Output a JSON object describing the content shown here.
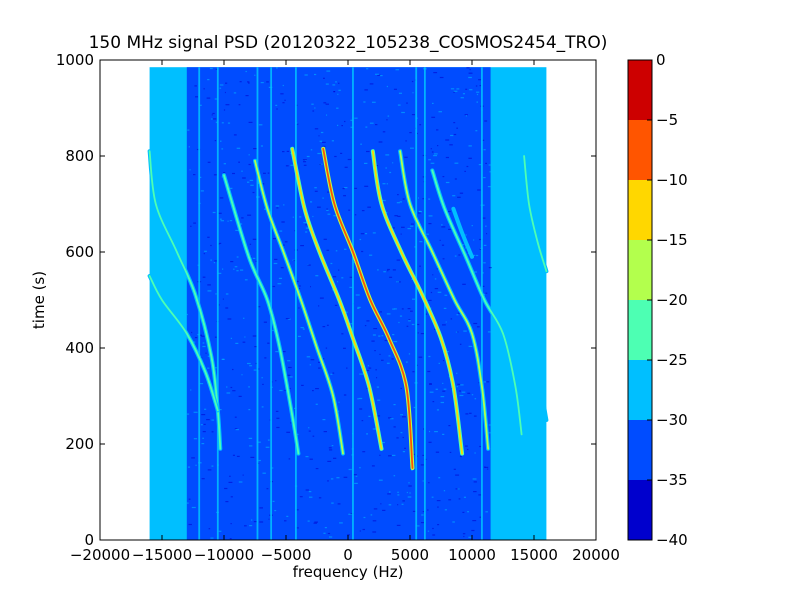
{
  "chart_data": {
    "type": "heatmap",
    "title": "150 MHz signal PSD (20120322_105238_COSMOS2454_TRO)",
    "xlabel": "frequency (Hz)",
    "ylabel": "time (s)",
    "xlim": [
      -20000,
      20000
    ],
    "ylim": [
      0,
      1000
    ],
    "x_ticks": [
      -20000,
      -15000,
      -10000,
      -5000,
      0,
      5000,
      10000,
      15000,
      20000
    ],
    "x_tick_labels": [
      "−20000",
      "−15000",
      "−10000",
      "−5000",
      "0",
      "5000",
      "10000",
      "15000",
      "20000"
    ],
    "y_ticks": [
      0,
      200,
      400,
      600,
      800,
      1000
    ],
    "y_tick_labels": [
      "0",
      "200",
      "400",
      "600",
      "800",
      "1000"
    ],
    "data_extent": {
      "x": [
        -16000,
        16000
      ],
      "y": [
        0,
        985
      ]
    },
    "colorbar": {
      "range": [
        -40,
        0
      ],
      "levels": [
        -40,
        -35,
        -30,
        -25,
        -20,
        -15,
        -10,
        -5,
        0
      ],
      "tick_labels": [
        "−40",
        "−35",
        "−30",
        "−25",
        "−20",
        "−15",
        "−10",
        "−5",
        "0"
      ],
      "colors": [
        "#0000cd",
        "#004cff",
        "#00bfff",
        "#4dffb3",
        "#b3ff4d",
        "#ffd700",
        "#ff5500",
        "#cd0000"
      ]
    },
    "background_level": -27,
    "noise_band": {
      "x": [
        -13000,
        11500
      ],
      "level": -32
    },
    "vertical_lines": [
      {
        "x": -12000,
        "level": -27
      },
      {
        "x": -10500,
        "level": -27
      },
      {
        "x": -7300,
        "level": -25
      },
      {
        "x": -6200,
        "level": -25
      },
      {
        "x": -4200,
        "level": -27
      },
      {
        "x": 400,
        "level": -27
      },
      {
        "x": 5500,
        "level": -27
      },
      {
        "x": 6200,
        "level": -25
      },
      {
        "x": 10800,
        "level": -27
      }
    ],
    "tracks": [
      {
        "points": [
          [
            -16000,
            810
          ],
          [
            -15500,
            700
          ],
          [
            -13800,
            600
          ],
          [
            -12300,
            510
          ],
          [
            -11000,
            380
          ],
          [
            -10500,
            270
          ],
          [
            -10300,
            190
          ]
        ],
        "level": -20
      },
      {
        "points": [
          [
            -16000,
            550
          ],
          [
            -15000,
            500
          ],
          [
            -13000,
            430
          ],
          [
            -11500,
            350
          ],
          [
            -10500,
            270
          ]
        ],
        "level": -20
      },
      {
        "points": [
          [
            -10000,
            760
          ],
          [
            -8000,
            590
          ],
          [
            -6500,
            500
          ],
          [
            -5500,
            400
          ],
          [
            -4500,
            260
          ],
          [
            -4000,
            180
          ]
        ],
        "level": -20
      },
      {
        "points": [
          [
            -7500,
            790
          ],
          [
            -6500,
            690
          ],
          [
            -5200,
            600
          ],
          [
            -3800,
            500
          ],
          [
            -2500,
            400
          ],
          [
            -1200,
            300
          ],
          [
            -400,
            180
          ]
        ],
        "level": -15
      },
      {
        "points": [
          [
            -4500,
            815
          ],
          [
            -3500,
            690
          ],
          [
            -2300,
            600
          ],
          [
            -700,
            500
          ],
          [
            400,
            420
          ],
          [
            1700,
            320
          ],
          [
            2700,
            190
          ]
        ],
        "level": -10
      },
      {
        "points": [
          [
            -2000,
            815
          ],
          [
            -1100,
            700
          ],
          [
            400,
            600
          ],
          [
            1800,
            500
          ],
          [
            3300,
            420
          ],
          [
            4700,
            320
          ],
          [
            5200,
            150
          ]
        ],
        "level": -5
      },
      {
        "points": [
          [
            2000,
            810
          ],
          [
            2700,
            700
          ],
          [
            4300,
            600
          ],
          [
            6000,
            510
          ],
          [
            7500,
            420
          ],
          [
            8500,
            320
          ],
          [
            9200,
            180
          ]
        ],
        "level": -10
      },
      {
        "points": [
          [
            4200,
            810
          ],
          [
            5000,
            700
          ],
          [
            6800,
            600
          ],
          [
            8600,
            500
          ],
          [
            10000,
            430
          ],
          [
            10800,
            320
          ],
          [
            11300,
            190
          ]
        ],
        "level": -15
      },
      {
        "points": [
          [
            6800,
            770
          ],
          [
            7800,
            690
          ],
          [
            9500,
            590
          ],
          [
            11000,
            500
          ],
          [
            12500,
            430
          ],
          [
            13500,
            320
          ],
          [
            14000,
            220
          ]
        ],
        "level": -20
      },
      {
        "points": [
          [
            14200,
            800
          ],
          [
            14600,
            700
          ],
          [
            15300,
            620
          ],
          [
            16000,
            560
          ]
        ],
        "level": -20
      },
      {
        "points": [
          [
            13400,
            480
          ],
          [
            14200,
            420
          ],
          [
            15200,
            360
          ],
          [
            16000,
            250
          ]
        ],
        "level": -25
      },
      {
        "points": [
          [
            8500,
            690
          ],
          [
            9200,
            640
          ],
          [
            10000,
            590
          ]
        ],
        "level": -25
      }
    ]
  }
}
